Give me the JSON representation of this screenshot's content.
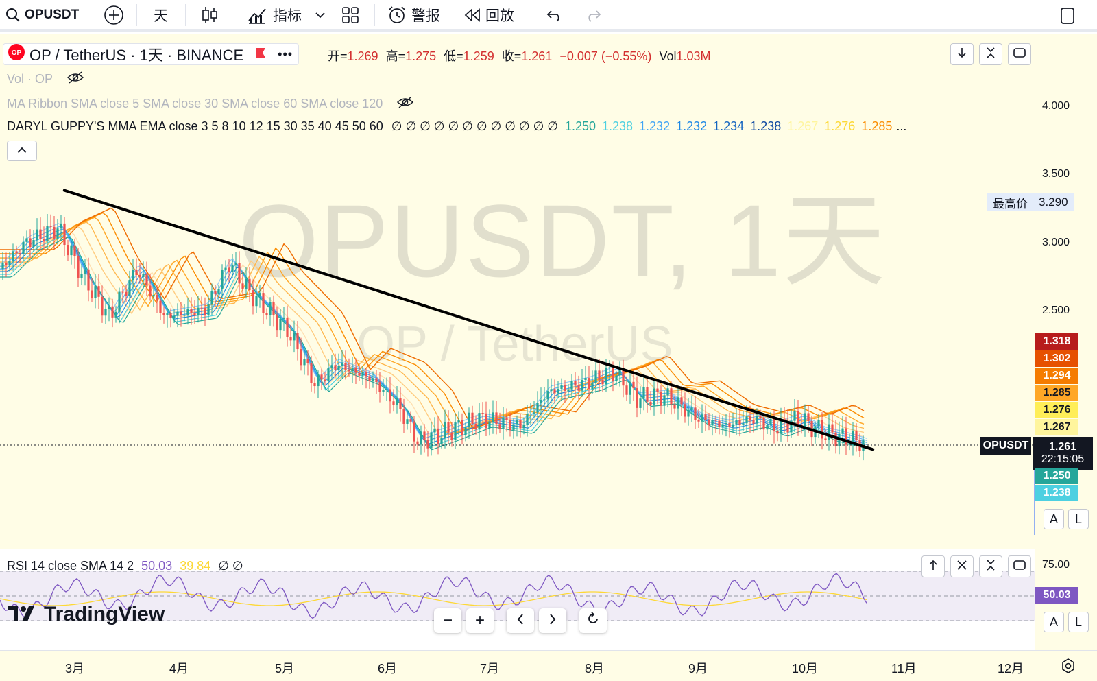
{
  "toolbar": {
    "symbol": "OPUSDT",
    "interval": "天",
    "indicators": "指标",
    "alert": "警报",
    "replay": "回放"
  },
  "legend": {
    "symbol_title": "OP / TetherUS · 1天 · BINANCE",
    "ohlc": {
      "open_label": "开=",
      "open": "1.269",
      "high_label": "高=",
      "high": "1.275",
      "low_label": "低=",
      "low": "1.259",
      "close_label": "收=",
      "close": "1.261",
      "change": "−0.007 (−0.55%)",
      "vol_label": "Vol",
      "vol": "1.03M"
    },
    "vol_indicator": "Vol · OP",
    "ma_ribbon": "MA Ribbon SMA close 5 SMA close 30 SMA close 60 SMA close 120",
    "guppy_label": "DARYL GUPPY'S MMA EMA close 3 5 8 10 12 15 30 35 40 45 50 60",
    "guppy_nulls": "∅ ∅ ∅ ∅ ∅ ∅ ∅ ∅ ∅ ∅ ∅ ∅",
    "guppy_values": [
      {
        "v": "1.250",
        "c": "#26a69a"
      },
      {
        "v": "1.238",
        "c": "#4dd0e1"
      },
      {
        "v": "1.232",
        "c": "#42a5f5"
      },
      {
        "v": "1.232",
        "c": "#1e88e5"
      },
      {
        "v": "1.234",
        "c": "#1565c0"
      },
      {
        "v": "1.238",
        "c": "#0d47a1"
      },
      {
        "v": "1.267",
        "c": "#fff59d"
      },
      {
        "v": "1.276",
        "c": "#fdd835"
      },
      {
        "v": "1.285",
        "c": "#fb8c00"
      }
    ],
    "guppy_more": "..."
  },
  "watermark": {
    "title": "OPUSDT, 1天",
    "subtitle": "OP / TetherUS"
  },
  "price_axis": {
    "ticks": [
      "4.000",
      "3.500",
      "3.000",
      "2.500"
    ],
    "high_label": "最高价",
    "high_value": "3.290",
    "tags": [
      {
        "v": "1.318",
        "bg": "#b71c1c",
        "fg": "#ffffff"
      },
      {
        "v": "1.302",
        "bg": "#e65100",
        "fg": "#ffffff"
      },
      {
        "v": "1.294",
        "bg": "#f57c00",
        "fg": "#ffffff"
      },
      {
        "v": "1.285",
        "bg": "#ffa726",
        "fg": "#131722"
      },
      {
        "v": "1.276",
        "bg": "#ffee58",
        "fg": "#131722"
      },
      {
        "v": "1.267",
        "bg": "#fff59d",
        "fg": "#131722"
      }
    ],
    "current_symbol": "OPUSDT",
    "current_price": "1.261",
    "countdown": "22:15:05",
    "lower_tags": [
      {
        "v": "1.250",
        "bg": "#26a69a"
      },
      {
        "v": "1.238",
        "bg": "#4dd0e1"
      }
    ],
    "auto_label": "A",
    "log_label": "L"
  },
  "rsi": {
    "label": "RSI 14 close SMA 14 2",
    "value": "50.03",
    "sma": "39.84",
    "nulls": "∅ ∅",
    "tick_75": "75.00",
    "current": "50.03"
  },
  "time_axis": {
    "months": [
      "3月",
      "4月",
      "5月",
      "6月",
      "7月",
      "8月",
      "9月",
      "10月",
      "11月",
      "12月"
    ]
  },
  "branding": {
    "name": "TradingView"
  },
  "colors": {
    "up": "#26a69a",
    "down": "#ef5350",
    "background": "#fffde6",
    "trendline": "#000000",
    "rsi_line": "#7e57c2",
    "rsi_sma": "#fdd835"
  }
}
